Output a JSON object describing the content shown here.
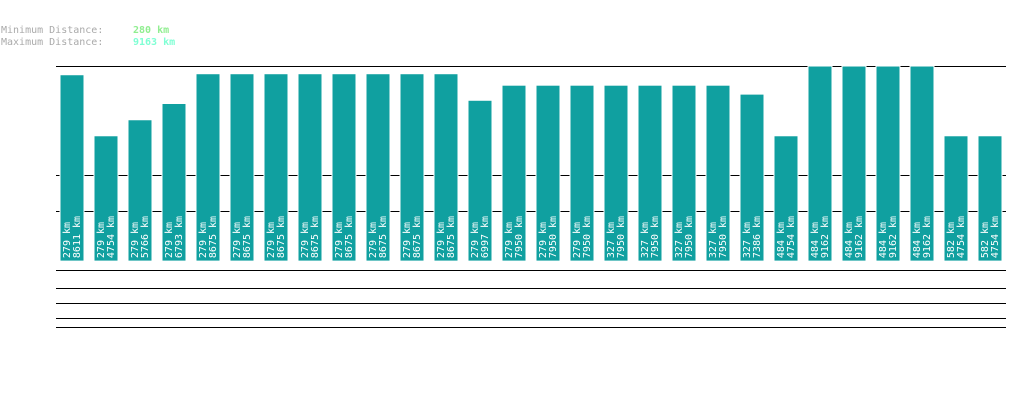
{
  "header": {
    "min_label": "Minimum Distance:",
    "min_value": "280 km",
    "max_label": "Maximum Distance:",
    "max_value": "9163 km"
  },
  "colors": {
    "bar": "#10a0a0",
    "bar_text": "#ffffff",
    "line": "#000000",
    "min_value": "#90ee90",
    "max_value": "#7fffd4",
    "label": "#aaaaaa"
  },
  "chart_data": {
    "type": "bar",
    "unit": "km",
    "ylim": [
      0,
      9163
    ],
    "bars": [
      {
        "min": 279,
        "max": 8611
      },
      {
        "min": 279,
        "max": 4754
      },
      {
        "min": 279,
        "max": 5766
      },
      {
        "min": 279,
        "max": 6793
      },
      {
        "min": 279,
        "max": 8675
      },
      {
        "min": 279,
        "max": 8675
      },
      {
        "min": 279,
        "max": 8675
      },
      {
        "min": 279,
        "max": 8675
      },
      {
        "min": 279,
        "max": 8675
      },
      {
        "min": 279,
        "max": 8675
      },
      {
        "min": 279,
        "max": 8675
      },
      {
        "min": 279,
        "max": 8675
      },
      {
        "min": 279,
        "max": 6997
      },
      {
        "min": 279,
        "max": 7950
      },
      {
        "min": 279,
        "max": 7950
      },
      {
        "min": 279,
        "max": 7950
      },
      {
        "min": 327,
        "max": 7950
      },
      {
        "min": 327,
        "max": 7950
      },
      {
        "min": 327,
        "max": 7950
      },
      {
        "min": 327,
        "max": 7950
      },
      {
        "min": 327,
        "max": 7386
      },
      {
        "min": 484,
        "max": 4754
      },
      {
        "min": 484,
        "max": 9162
      },
      {
        "min": 484,
        "max": 9162
      },
      {
        "min": 484,
        "max": 9162
      },
      {
        "min": 484,
        "max": 9162
      },
      {
        "min": 582,
        "max": 4754
      },
      {
        "min": 582,
        "max": 4754
      }
    ]
  }
}
